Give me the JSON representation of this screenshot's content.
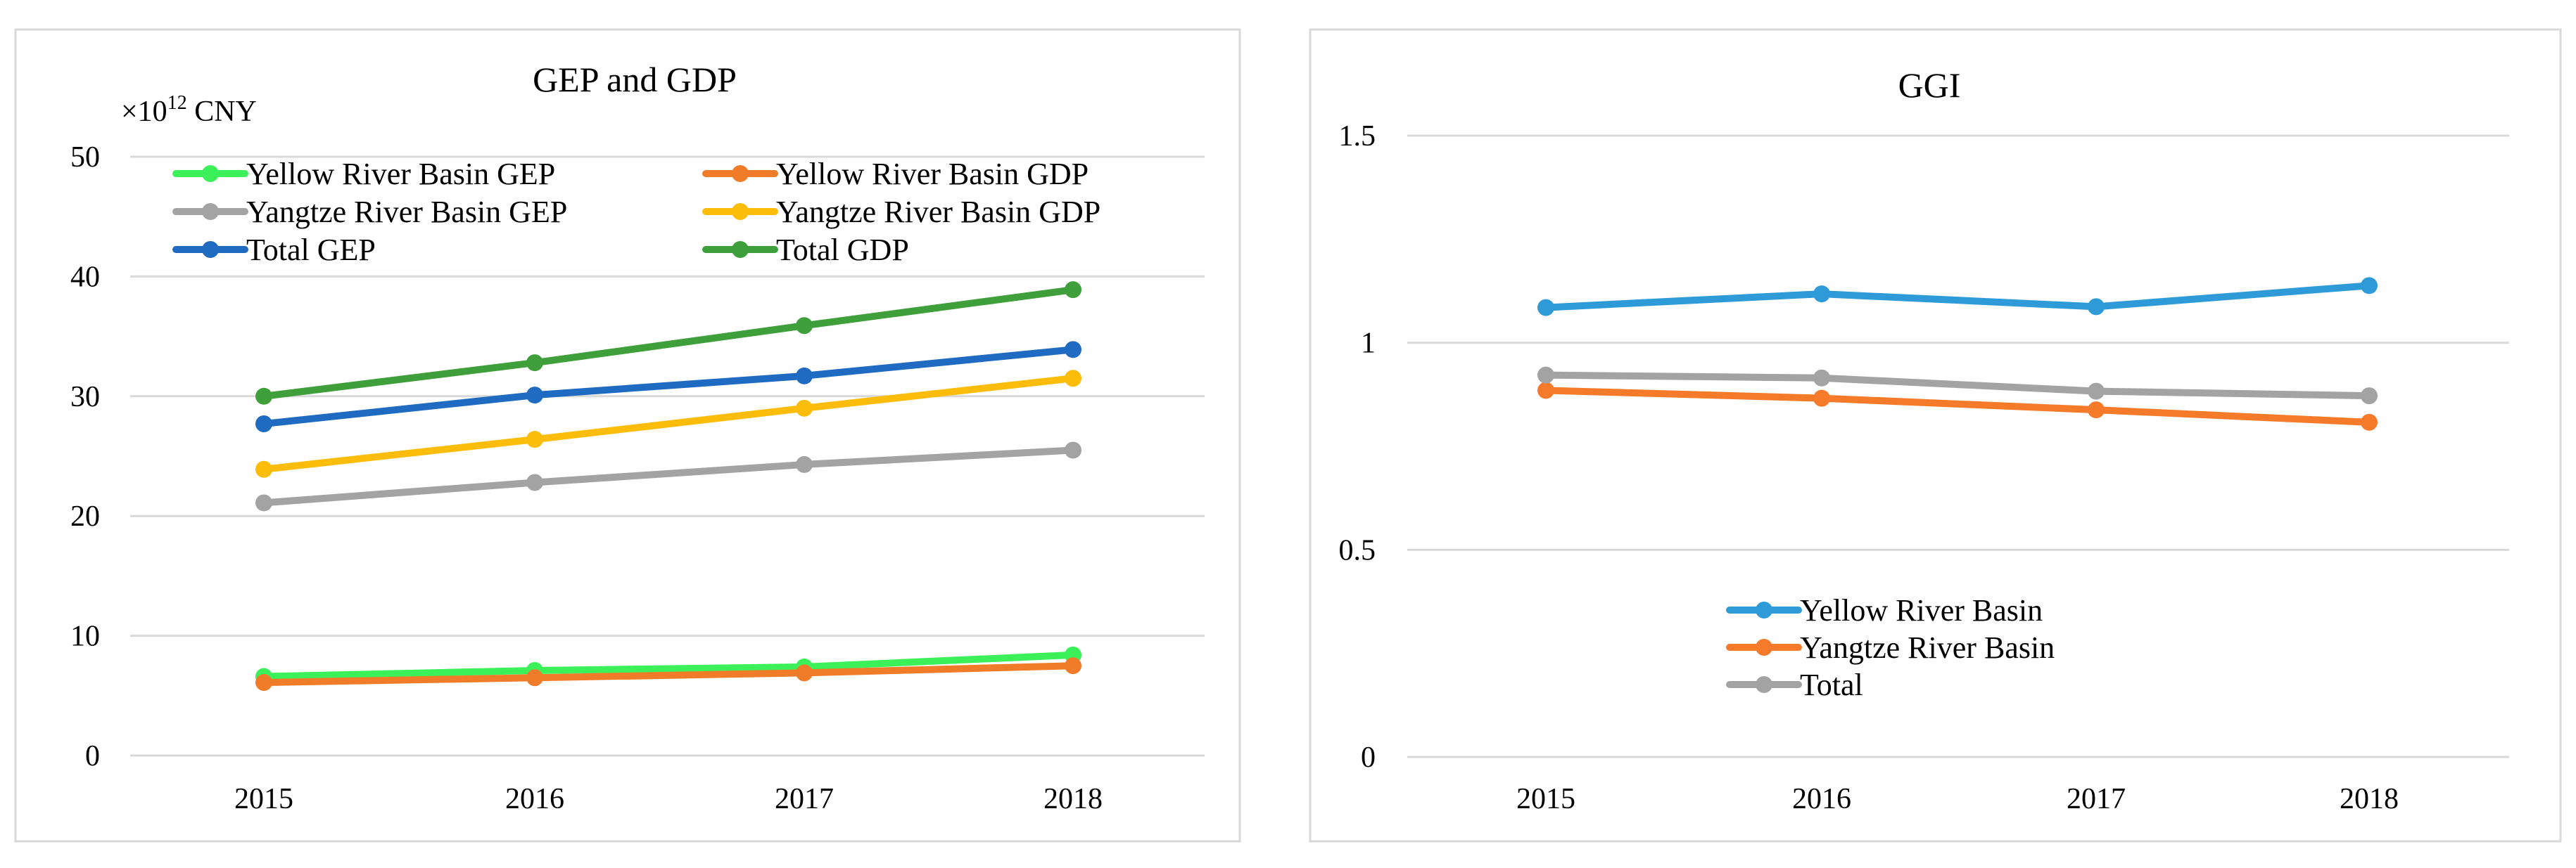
{
  "chart_data": [
    {
      "type": "line",
      "title": "GEP and GDP",
      "unit_prefix": "×10",
      "unit_exp": "12",
      "unit_suffix": " CNY",
      "xlabel": "",
      "ylabel": "",
      "categories": [
        "2015",
        "2016",
        "2017",
        "2018"
      ],
      "ylim": [
        0,
        50
      ],
      "yticks": [
        0,
        10,
        20,
        30,
        40,
        50
      ],
      "ytick_labels": [
        "0",
        "10",
        "20",
        "30",
        "40",
        "50"
      ],
      "grid": true,
      "legend_position": "top",
      "series": [
        {
          "name": "Yellow River Basin GEP",
          "color": "#3cf05a",
          "values": [
            6.6,
            7.1,
            7.4,
            8.4
          ]
        },
        {
          "name": "Yellow River Basin GDP",
          "color": "#f07c2a",
          "values": [
            6.1,
            6.5,
            6.9,
            7.5
          ]
        },
        {
          "name": "Yangtze River Basin GEP",
          "color": "#a3a3a3",
          "values": [
            21.1,
            22.8,
            24.3,
            25.5
          ]
        },
        {
          "name": "Yangtze River Basin GDP",
          "color": "#fcbc0a",
          "values": [
            23.9,
            26.4,
            29.0,
            31.5
          ]
        },
        {
          "name": "Total GEP",
          "color": "#1f6bc1",
          "values": [
            27.7,
            30.1,
            31.7,
            33.9
          ]
        },
        {
          "name": "Total GDP",
          "color": "#3f9f3a",
          "values": [
            30.0,
            32.8,
            35.9,
            38.9
          ]
        }
      ]
    },
    {
      "type": "line",
      "title": "GGI",
      "xlabel": "",
      "ylabel": "",
      "categories": [
        "2015",
        "2016",
        "2017",
        "2018"
      ],
      "ylim": [
        0,
        1.5
      ],
      "yticks": [
        0,
        0.5,
        1,
        1.5
      ],
      "ytick_labels": [
        "0",
        "0.5",
        "1",
        "1.5"
      ],
      "grid": true,
      "legend_position": "center-bottom",
      "series": [
        {
          "name": "Yellow River Basin",
          "color": "#2e9bd8",
          "values": [
            1.085,
            1.118,
            1.087,
            1.138
          ]
        },
        {
          "name": "Yangtze River Basin",
          "color": "#f57a2a",
          "values": [
            0.885,
            0.866,
            0.838,
            0.808
          ]
        },
        {
          "name": "Total",
          "color": "#a3a3a3",
          "values": [
            0.922,
            0.915,
            0.883,
            0.872
          ]
        }
      ]
    }
  ]
}
